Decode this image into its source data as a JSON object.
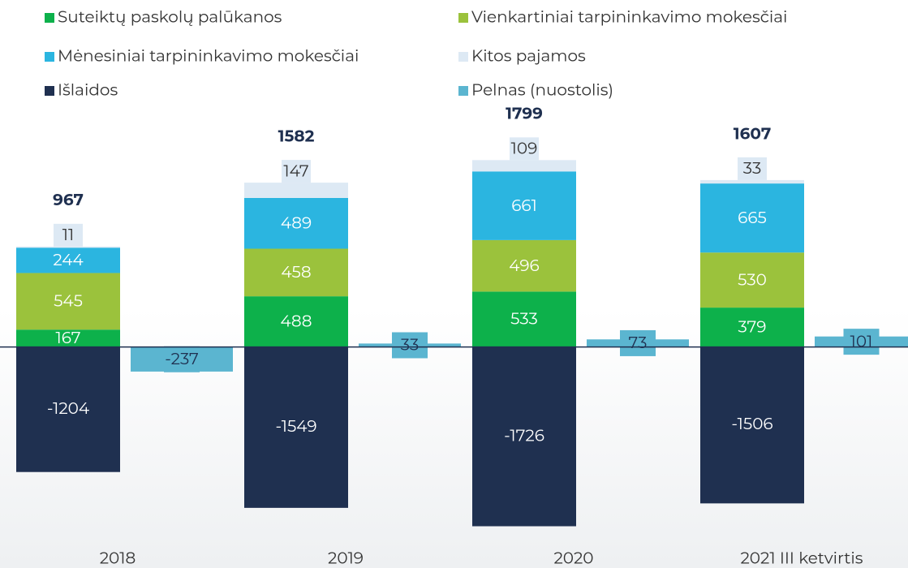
{
  "chart_data": {
    "type": "bar",
    "categories": [
      "2018",
      "2019",
      "2020",
      "2021 III ketvirtis"
    ],
    "series": [
      {
        "name": "Suteiktų paskolų palūkanos",
        "color": "#0db14b",
        "values": [
          167,
          488,
          533,
          379
        ]
      },
      {
        "name": "Vienkartiniai tarpininkavimo mokesčiai",
        "color": "#9bc23c",
        "values": [
          545,
          458,
          496,
          530
        ]
      },
      {
        "name": "Mėnesiniai tarpininkavimo mokesčiai",
        "color": "#2bb5e0",
        "values": [
          244,
          489,
          661,
          665
        ]
      },
      {
        "name": "Kitos pajamos",
        "color": "#dde9f4",
        "values": [
          11,
          147,
          109,
          33
        ]
      },
      {
        "name": "Išlaidos",
        "color": "#1f3050",
        "values": [
          -1204,
          -1549,
          -1726,
          -1506
        ]
      },
      {
        "name": "Pelnas (nuostolis)",
        "color": "#5bb5d0",
        "values": [
          -237,
          33,
          73,
          101
        ]
      }
    ],
    "totals": [
      967,
      1582,
      1799,
      1607
    ],
    "ylim": [
      -1800,
      2200
    ]
  }
}
